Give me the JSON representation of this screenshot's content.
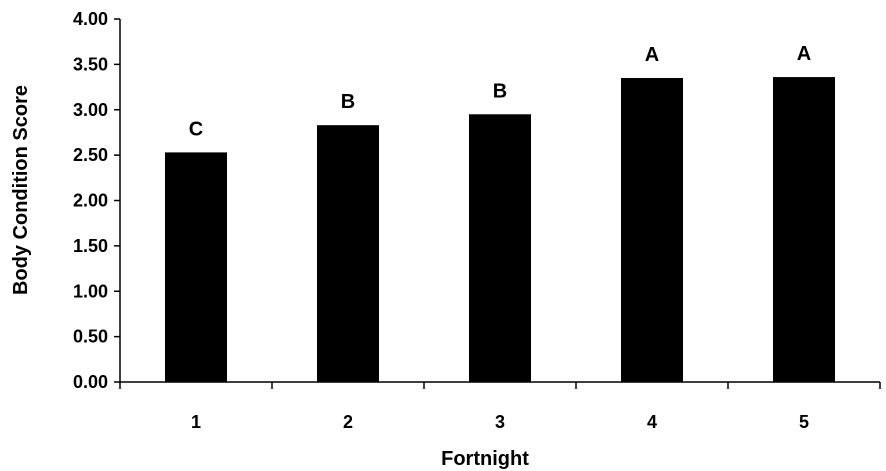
{
  "chart_data": {
    "type": "bar",
    "categories": [
      "1",
      "2",
      "3",
      "4",
      "5"
    ],
    "values": [
      2.53,
      2.83,
      2.95,
      3.35,
      3.36
    ],
    "bar_labels": [
      "C",
      "B",
      "B",
      "A",
      "A"
    ],
    "xlabel": "Fortnight",
    "ylabel": "Body Condition Score",
    "ylim": [
      0,
      4
    ],
    "yticks": [
      "0.00",
      "0.50",
      "1.00",
      "1.50",
      "2.00",
      "2.50",
      "3.00",
      "3.50",
      "4.00"
    ],
    "grid": false,
    "legend": "none",
    "bar_color": "#000000"
  }
}
